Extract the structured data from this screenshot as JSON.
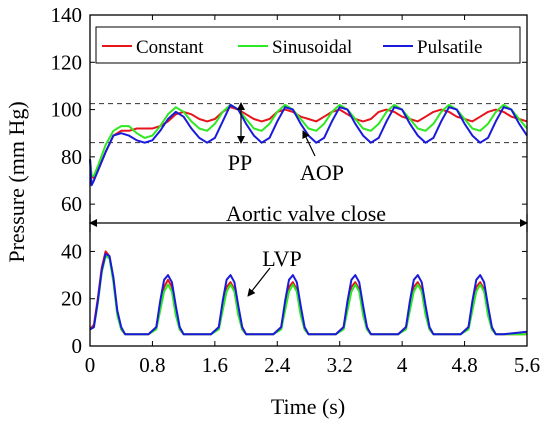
{
  "chart_data": {
    "type": "line",
    "xlabel": "Time (s)",
    "ylabel": "Pressure (mm Hg)",
    "xlim": [
      0,
      5.6
    ],
    "ylim": [
      0,
      140
    ],
    "xticks": [
      "0",
      "0.8",
      "1.6",
      "2.4",
      "3.2",
      "4",
      "4.8",
      "5.6"
    ],
    "xtick_values": [
      0,
      0.8,
      1.6,
      2.4,
      3.2,
      4,
      4.8,
      5.6
    ],
    "yticks": [
      "0",
      "20",
      "40",
      "60",
      "80",
      "100",
      "120",
      "140"
    ],
    "ytick_values": [
      0,
      20,
      40,
      60,
      80,
      100,
      120,
      140
    ],
    "grid": false,
    "legend_position": "top",
    "reference_lines": [
      102.5,
      86
    ],
    "annotations": {
      "pp": "PP",
      "aop": "AOP",
      "lvp": "LVP",
      "valve": "Aortic valve close"
    },
    "series": [
      {
        "name": "Constant",
        "color": "#e8141b",
        "group": "AOP",
        "x": [
          0,
          0.02,
          0.05,
          0.1,
          0.2,
          0.3,
          0.4,
          0.5,
          0.6,
          0.7,
          0.8,
          0.9,
          1.0,
          1.1,
          1.2,
          1.3,
          1.4,
          1.5,
          1.6,
          1.7,
          1.8,
          1.9,
          2.0,
          2.1,
          2.2,
          2.3,
          2.4,
          2.5,
          2.6,
          2.7,
          2.8,
          2.9,
          3.0,
          3.1,
          3.2,
          3.3,
          3.4,
          3.5,
          3.6,
          3.7,
          3.8,
          3.9,
          4.0,
          4.1,
          4.2,
          4.3,
          4.4,
          4.5,
          4.6,
          4.7,
          4.8,
          4.9,
          5.0,
          5.1,
          5.2,
          5.3,
          5.4,
          5.5,
          5.6
        ],
        "values": [
          79,
          72,
          71,
          74,
          82,
          89,
          91,
          91,
          92,
          92,
          92,
          93,
          95,
          98,
          99,
          98,
          96,
          95,
          96,
          99,
          101,
          100,
          98,
          96,
          95,
          96,
          99,
          100,
          99,
          97,
          96,
          95,
          97,
          99,
          100,
          98,
          96,
          95,
          96,
          99,
          100,
          99,
          97,
          96,
          95,
          97,
          99,
          100,
          99,
          97,
          96,
          95,
          97,
          99,
          100,
          99,
          97,
          96,
          95
        ]
      },
      {
        "name": "Sinusoidal",
        "color": "#2ee822",
        "group": "AOP",
        "x": [
          0,
          0.02,
          0.05,
          0.1,
          0.2,
          0.3,
          0.4,
          0.5,
          0.6,
          0.7,
          0.8,
          0.9,
          1.0,
          1.1,
          1.2,
          1.3,
          1.4,
          1.5,
          1.6,
          1.7,
          1.8,
          1.9,
          2.0,
          2.1,
          2.2,
          2.3,
          2.4,
          2.5,
          2.6,
          2.7,
          2.8,
          2.9,
          3.0,
          3.1,
          3.2,
          3.3,
          3.4,
          3.5,
          3.6,
          3.7,
          3.8,
          3.9,
          4.0,
          4.1,
          4.2,
          4.3,
          4.4,
          4.5,
          4.6,
          4.7,
          4.8,
          4.9,
          5.0,
          5.1,
          5.2,
          5.3,
          5.4,
          5.5,
          5.6
        ],
        "values": [
          79,
          72,
          72,
          76,
          85,
          91,
          93,
          93,
          90,
          88,
          89,
          93,
          98,
          101,
          99,
          95,
          92,
          91,
          94,
          99,
          102,
          100,
          96,
          92,
          91,
          94,
          99,
          102,
          100,
          96,
          92,
          91,
          94,
          99,
          102,
          100,
          96,
          92,
          91,
          94,
          99,
          102,
          100,
          96,
          92,
          91,
          94,
          99,
          102,
          100,
          96,
          92,
          91,
          94,
          99,
          102,
          100,
          96,
          92
        ]
      },
      {
        "name": "Pulsatile",
        "color": "#1a1adb",
        "group": "AOP",
        "x": [
          0,
          0.02,
          0.05,
          0.1,
          0.2,
          0.3,
          0.4,
          0.5,
          0.6,
          0.7,
          0.8,
          0.9,
          1.0,
          1.1,
          1.2,
          1.3,
          1.4,
          1.5,
          1.6,
          1.7,
          1.8,
          1.9,
          2.0,
          2.1,
          2.2,
          2.3,
          2.4,
          2.5,
          2.6,
          2.7,
          2.8,
          2.9,
          3.0,
          3.1,
          3.2,
          3.3,
          3.4,
          3.5,
          3.6,
          3.7,
          3.8,
          3.9,
          4.0,
          4.1,
          4.2,
          4.3,
          4.4,
          4.5,
          4.6,
          4.7,
          4.8,
          4.9,
          5.0,
          5.1,
          5.2,
          5.3,
          5.4,
          5.5,
          5.6
        ],
        "values": [
          79,
          68,
          70,
          74,
          82,
          89,
          90,
          89,
          87,
          86,
          87,
          91,
          96,
          99,
          97,
          92,
          88,
          86,
          88,
          95,
          102,
          100,
          94,
          89,
          86,
          88,
          95,
          101,
          100,
          94,
          89,
          86,
          88,
          95,
          101,
          100,
          94,
          89,
          86,
          88,
          95,
          101,
          100,
          94,
          89,
          86,
          88,
          95,
          101,
          100,
          94,
          89,
          86,
          88,
          95,
          101,
          100,
          94,
          89
        ]
      },
      {
        "name": "Constant",
        "color": "#e8141b",
        "group": "LVP",
        "x": [
          0,
          0.05,
          0.1,
          0.15,
          0.2,
          0.25,
          0.3,
          0.35,
          0.4,
          0.45,
          0.5,
          0.6,
          0.75,
          0.85,
          0.9,
          0.95,
          1.0,
          1.05,
          1.1,
          1.15,
          1.2,
          1.3,
          1.55,
          1.65,
          1.7,
          1.75,
          1.8,
          1.85,
          1.9,
          1.95,
          2.0,
          2.1,
          2.35,
          2.45,
          2.5,
          2.55,
          2.6,
          2.65,
          2.7,
          2.75,
          2.8,
          2.9,
          3.15,
          3.25,
          3.3,
          3.35,
          3.4,
          3.45,
          3.5,
          3.55,
          3.6,
          3.7,
          3.95,
          4.05,
          4.1,
          4.15,
          4.2,
          4.25,
          4.3,
          4.35,
          4.4,
          4.5,
          4.75,
          4.85,
          4.9,
          4.95,
          5.0,
          5.05,
          5.1,
          5.15,
          5.2,
          5.3,
          5.6
        ],
        "values": [
          7,
          9,
          20,
          33,
          40,
          38,
          28,
          14,
          7,
          5,
          5,
          5,
          5,
          8,
          17,
          25,
          28,
          25,
          15,
          7,
          5,
          5,
          5,
          8,
          17,
          25,
          27,
          24,
          14,
          7,
          5,
          5,
          5,
          8,
          17,
          25,
          27,
          24,
          14,
          7,
          5,
          5,
          5,
          8,
          17,
          25,
          27,
          24,
          14,
          7,
          5,
          5,
          5,
          8,
          17,
          25,
          27,
          24,
          14,
          7,
          5,
          5,
          5,
          8,
          17,
          25,
          27,
          24,
          14,
          7,
          5,
          5,
          5
        ]
      },
      {
        "name": "Sinusoidal",
        "color": "#2ee822",
        "group": "LVP",
        "x": [
          0,
          0.05,
          0.1,
          0.15,
          0.2,
          0.25,
          0.3,
          0.35,
          0.4,
          0.45,
          0.5,
          0.6,
          0.75,
          0.85,
          0.9,
          0.95,
          1.0,
          1.05,
          1.1,
          1.15,
          1.2,
          1.3,
          1.55,
          1.65,
          1.7,
          1.75,
          1.8,
          1.85,
          1.9,
          1.95,
          2.0,
          2.1,
          2.35,
          2.45,
          2.5,
          2.55,
          2.6,
          2.65,
          2.7,
          2.75,
          2.8,
          2.9,
          3.15,
          3.25,
          3.3,
          3.35,
          3.4,
          3.45,
          3.5,
          3.55,
          3.6,
          3.7,
          3.95,
          4.05,
          4.1,
          4.15,
          4.2,
          4.25,
          4.3,
          4.35,
          4.4,
          4.5,
          4.75,
          4.85,
          4.9,
          4.95,
          5.0,
          5.05,
          5.1,
          5.15,
          5.2,
          5.3,
          5.6
        ],
        "values": [
          7,
          8,
          18,
          31,
          38,
          37,
          27,
          13,
          7,
          5,
          5,
          5,
          5,
          7,
          15,
          23,
          26,
          23,
          13,
          7,
          5,
          5,
          5,
          7,
          15,
          23,
          26,
          23,
          13,
          7,
          5,
          5,
          5,
          7,
          15,
          23,
          26,
          23,
          13,
          7,
          5,
          5,
          5,
          7,
          15,
          23,
          26,
          23,
          13,
          7,
          5,
          5,
          5,
          7,
          15,
          23,
          26,
          23,
          13,
          7,
          5,
          5,
          5,
          7,
          15,
          23,
          26,
          23,
          13,
          7,
          5,
          5,
          5
        ]
      },
      {
        "name": "Pulsatile",
        "color": "#1a1adb",
        "group": "LVP",
        "x": [
          0,
          0.05,
          0.1,
          0.15,
          0.2,
          0.25,
          0.3,
          0.35,
          0.4,
          0.45,
          0.5,
          0.6,
          0.75,
          0.85,
          0.9,
          0.95,
          1.0,
          1.05,
          1.1,
          1.15,
          1.2,
          1.3,
          1.55,
          1.65,
          1.7,
          1.75,
          1.8,
          1.85,
          1.9,
          1.95,
          2.0,
          2.1,
          2.35,
          2.45,
          2.5,
          2.55,
          2.6,
          2.65,
          2.7,
          2.75,
          2.8,
          2.9,
          3.15,
          3.25,
          3.3,
          3.35,
          3.4,
          3.45,
          3.5,
          3.55,
          3.6,
          3.7,
          3.95,
          4.05,
          4.1,
          4.15,
          4.2,
          4.25,
          4.3,
          4.35,
          4.4,
          4.5,
          4.75,
          4.85,
          4.9,
          4.95,
          5.0,
          5.05,
          5.1,
          5.15,
          5.2,
          5.3,
          5.6
        ],
        "values": [
          7,
          8,
          19,
          32,
          39,
          38,
          29,
          15,
          8,
          5,
          5,
          5,
          5,
          8,
          19,
          28,
          30,
          27,
          17,
          8,
          5,
          5,
          5,
          8,
          19,
          28,
          30,
          27,
          17,
          8,
          5,
          5,
          5,
          8,
          19,
          28,
          30,
          27,
          17,
          8,
          5,
          5,
          5,
          8,
          19,
          28,
          30,
          27,
          17,
          8,
          5,
          5,
          5,
          8,
          19,
          28,
          30,
          27,
          17,
          8,
          5,
          5,
          5,
          8,
          19,
          28,
          30,
          27,
          17,
          8,
          5,
          5,
          6
        ]
      }
    ]
  }
}
